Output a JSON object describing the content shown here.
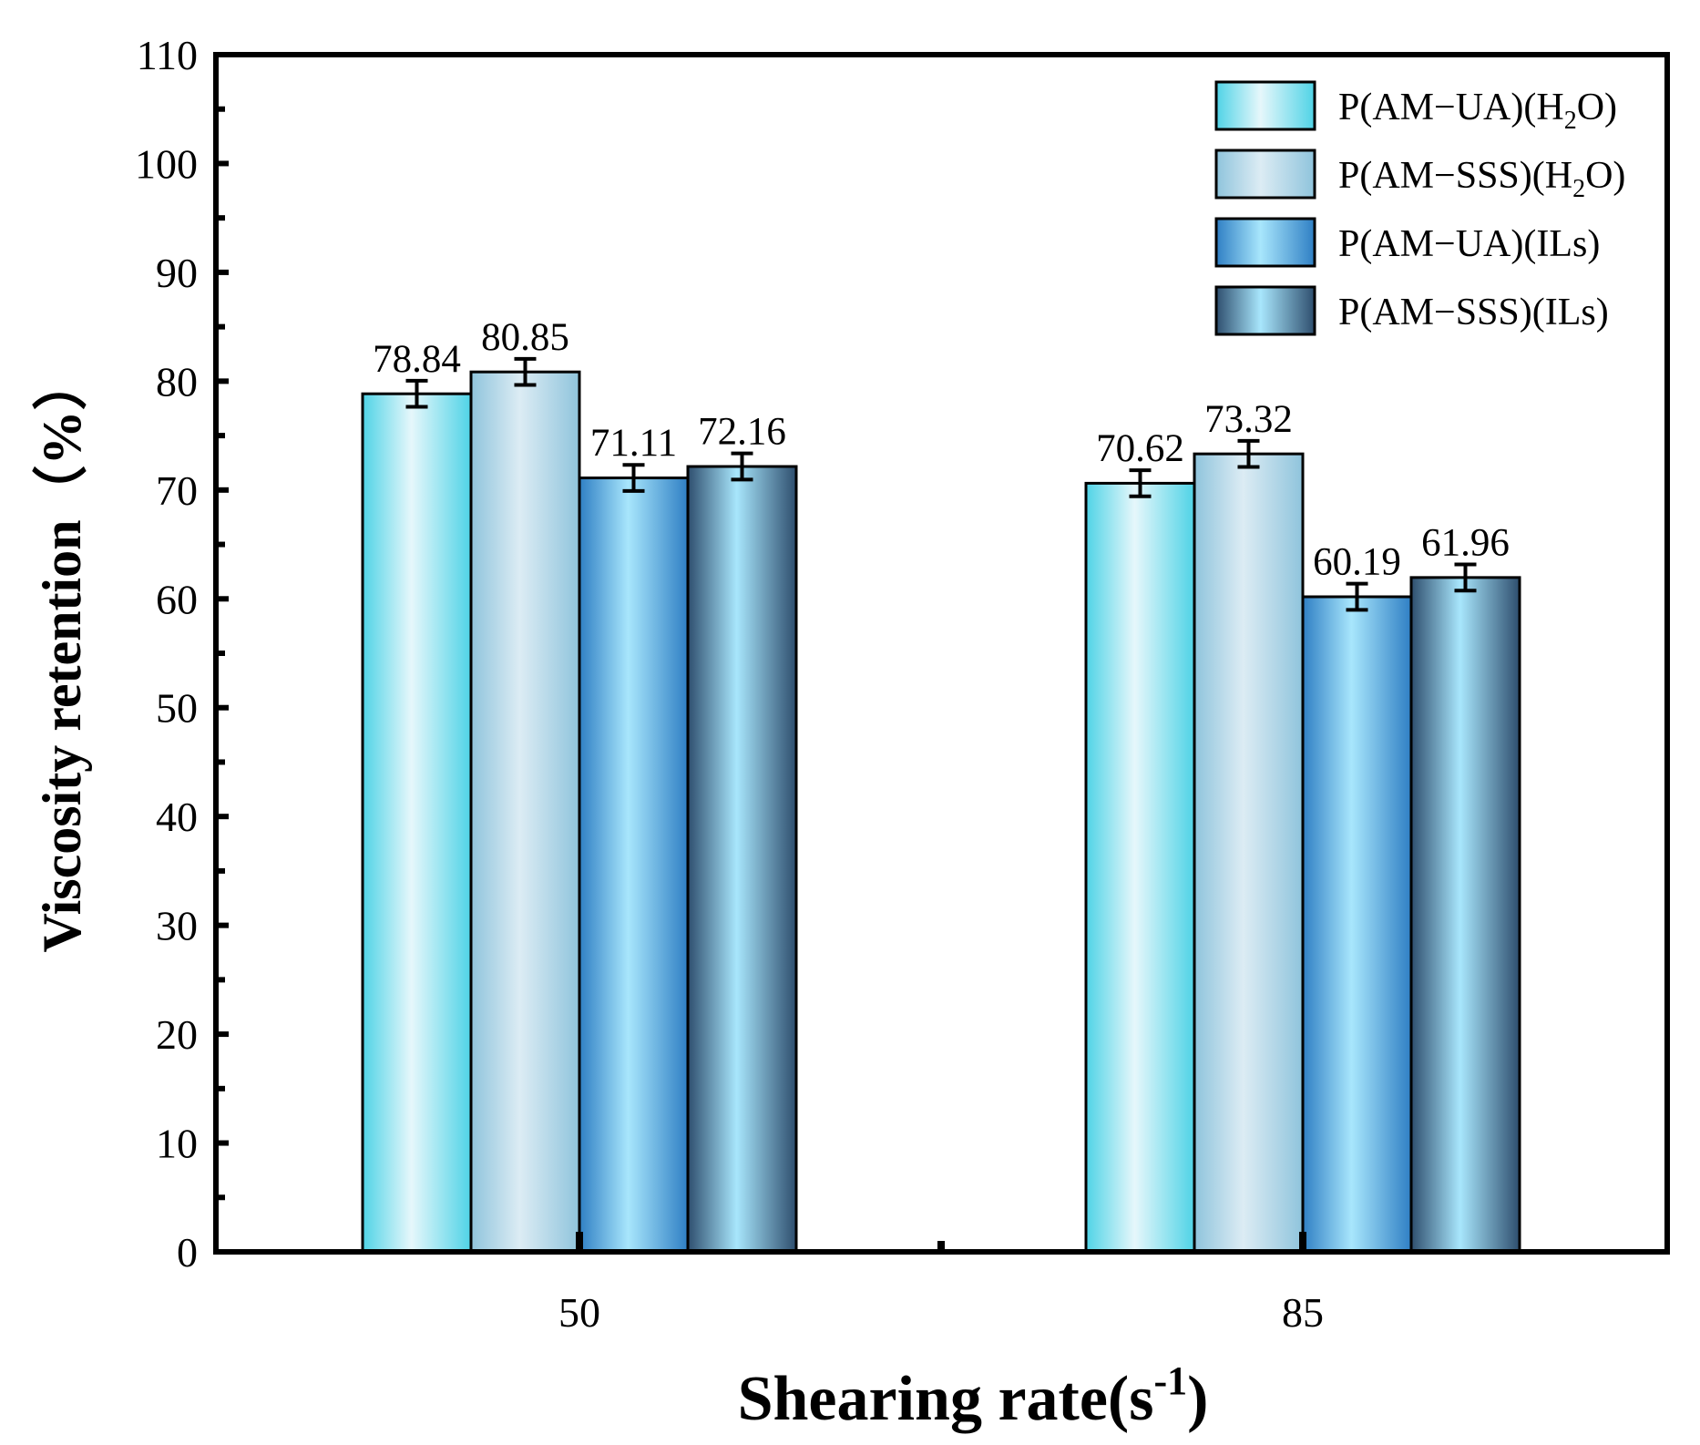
{
  "chart_data": {
    "type": "bar",
    "title": "",
    "xlabel": "Shearing rate(s",
    "xlabel_sup": "-1",
    "xlabel_close": ")",
    "ylabel": "Viscosity retention（%）",
    "ylim": [
      0,
      110
    ],
    "yticks": [
      0,
      10,
      20,
      30,
      40,
      50,
      60,
      70,
      80,
      90,
      100,
      110
    ],
    "categories": [
      "50",
      "85"
    ],
    "legend_position": "top-right",
    "grid": false,
    "series": [
      {
        "name": "P(AM−UA)(H2O)",
        "label_main": "P(AM−UA)(H",
        "label_sub": "2",
        "label_end": "O)",
        "values": [
          78.84,
          70.62
        ],
        "value_labels": [
          "78.84",
          "70.62"
        ],
        "errors": [
          1.2,
          1.2
        ],
        "colors": [
          "#4fd3e6",
          "#e6f7fb",
          "#4fd3e6"
        ]
      },
      {
        "name": "P(AM−SSS)(H2O)",
        "label_main": "P(AM−SSS)(H",
        "label_sub": "2",
        "label_end": "O)",
        "values": [
          80.85,
          73.32
        ],
        "value_labels": [
          "80.85",
          "73.32"
        ],
        "errors": [
          1.2,
          1.2
        ],
        "colors": [
          "#8fc4dc",
          "#dcecf4",
          "#8fc4dc"
        ]
      },
      {
        "name": "P(AM−UA)(ILs)",
        "label_main": "P(AM−UA)(ILs)",
        "label_sub": "",
        "label_end": "",
        "values": [
          71.11,
          60.19
        ],
        "value_labels": [
          "71.11",
          "60.19"
        ],
        "errors": [
          1.2,
          1.2
        ],
        "colors": [
          "#2f7fc4",
          "#a8e6fc",
          "#2f7fc4"
        ]
      },
      {
        "name": "P(AM−SSS)(ILs)",
        "label_main": "P(AM−SSS)(ILs)",
        "label_sub": "",
        "label_end": "",
        "values": [
          72.16,
          61.96
        ],
        "value_labels": [
          "72.16",
          "61.96"
        ],
        "errors": [
          1.2,
          1.2
        ],
        "colors": [
          "#2e4e6e",
          "#a8e6fc",
          "#2e4e6e"
        ]
      }
    ]
  }
}
